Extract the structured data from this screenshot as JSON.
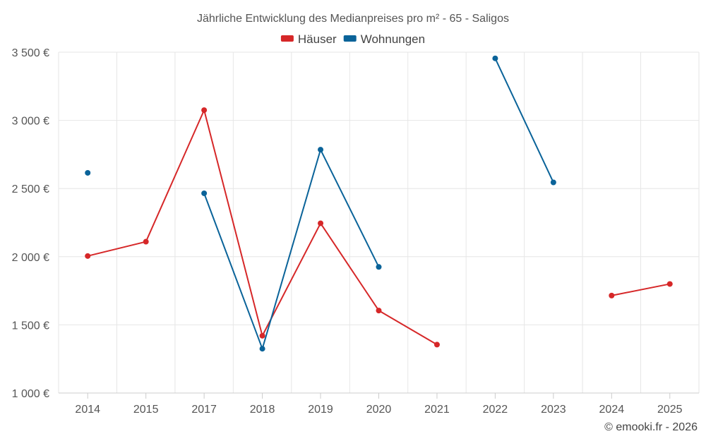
{
  "chart_data": {
    "type": "line",
    "title": "Jährliche Entwicklung des Medianpreises pro m² - 65 - Saligos",
    "categories": [
      "2014",
      "2015",
      "2017",
      "2018",
      "2019",
      "2020",
      "2021",
      "2022",
      "2023",
      "2024",
      "2025"
    ],
    "y_ticks": [
      "1 000 €",
      "1 500 €",
      "2 000 €",
      "2 500 €",
      "3 000 €",
      "3 500 €"
    ],
    "y_tick_values": [
      1000,
      1500,
      2000,
      2500,
      3000,
      3500
    ],
    "ylim": [
      1000,
      3500
    ],
    "grid": true,
    "legend_position": "top-center",
    "series": [
      {
        "name": "Häuser",
        "color": "#d62728",
        "values": [
          2005,
          2110,
          3075,
          1420,
          2245,
          1605,
          1355,
          null,
          null,
          1715,
          1800
        ]
      },
      {
        "name": "Wohnungen",
        "color": "#0a6399",
        "values": [
          2615,
          null,
          2465,
          1325,
          2785,
          1925,
          null,
          3455,
          2545,
          null,
          null
        ]
      }
    ],
    "credit": "© emooki.fr - 2026"
  }
}
